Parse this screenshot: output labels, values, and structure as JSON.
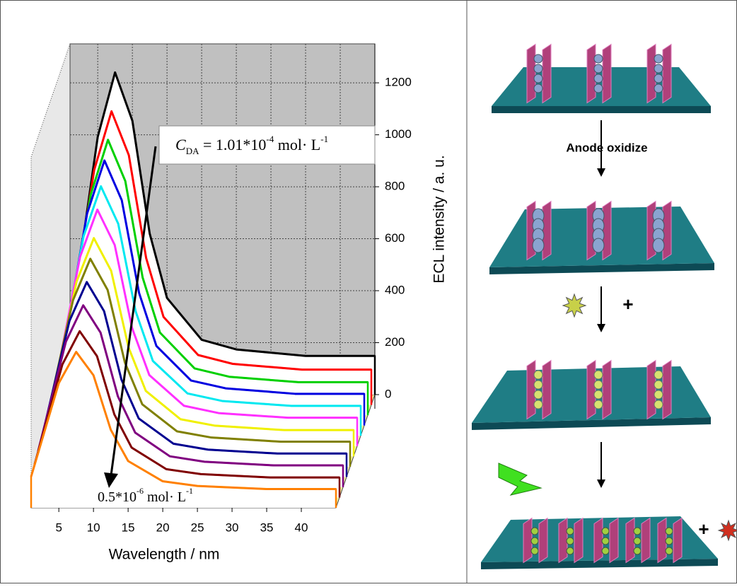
{
  "chart_data": {
    "type": "waterfall",
    "x_label": "Wavelength / nm",
    "y_label": "ECL intensity / a. u.",
    "x": [
      1,
      5,
      7.5,
      10,
      12.5,
      15,
      20,
      25,
      35,
      45
    ],
    "xlim": [
      1,
      45
    ],
    "xticks": [
      5,
      10,
      15,
      20,
      25,
      30,
      35,
      40
    ],
    "ylim": [
      0,
      1350
    ],
    "yticks": [
      0,
      200,
      400,
      600,
      800,
      1000,
      1200
    ],
    "grid": true,
    "series": [
      {
        "color": "#000000",
        "values": [
          248,
          992,
          1240,
          1054,
          620,
          372,
          211,
          174,
          149,
          149
        ]
      },
      {
        "color": "#ff0000",
        "values": [
          226,
          904,
          1130,
          961,
          565,
          339,
          192,
          158,
          136,
          136
        ]
      },
      {
        "color": "#00d000",
        "values": [
          212,
          848,
          1060,
          901,
          530,
          318,
          180,
          148,
          127,
          127
        ]
      },
      {
        "color": "#0000e0",
        "values": [
          204,
          816,
          1020,
          867,
          510,
          306,
          173,
          143,
          122,
          122
        ]
      },
      {
        "color": "#00e8f0",
        "values": [
          192,
          768,
          960,
          816,
          480,
          288,
          163,
          134,
          115,
          115
        ]
      },
      {
        "color": "#ff30ff",
        "values": [
          182,
          728,
          910,
          774,
          455,
          273,
          155,
          127,
          109,
          109
        ]
      },
      {
        "color": "#f0f000",
        "values": [
          168,
          672,
          840,
          714,
          420,
          252,
          143,
          118,
          101,
          101
        ]
      },
      {
        "color": "#808000",
        "values": [
          160,
          640,
          800,
          680,
          400,
          240,
          136,
          112,
          96,
          96
        ]
      },
      {
        "color": "#000090",
        "values": [
          150,
          600,
          750,
          638,
          375,
          225,
          128,
          105,
          90,
          90
        ]
      },
      {
        "color": "#800080",
        "values": [
          140,
          560,
          700,
          595,
          350,
          210,
          119,
          98,
          84,
          84
        ]
      },
      {
        "color": "#800000",
        "values": [
          128,
          512,
          640,
          544,
          320,
          192,
          109,
          90,
          77,
          77
        ]
      },
      {
        "color": "#ff8000",
        "values": [
          120,
          480,
          600,
          510,
          300,
          180,
          102,
          84,
          72,
          72
        ]
      }
    ],
    "annotation_top": {
      "c": "C",
      "sub": "DA",
      "mid": " = 1.01*10",
      "exp": "-4",
      "unit": " mol· L",
      "unit_exp": "-1"
    },
    "annotation_bottom": {
      "mid": "0.5*10",
      "exp": "-6",
      "unit": " mol· L",
      "unit_exp": "-1"
    }
  },
  "schematic": {
    "step_label": "Anode oxidize",
    "plus_1": "+",
    "plus_2": "+"
  }
}
